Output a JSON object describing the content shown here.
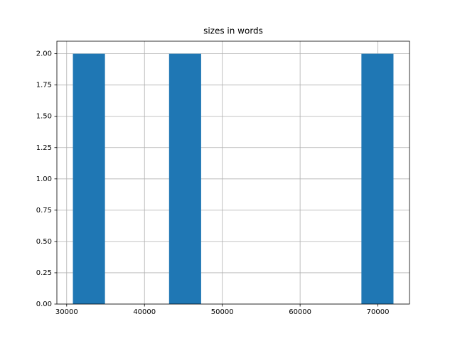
{
  "chart_data": {
    "type": "histogram",
    "title": "sizes in words",
    "bins": [
      30800,
      34920,
      39040,
      43160,
      47280,
      51400,
      55520,
      59640,
      63760,
      67880,
      72000
    ],
    "counts": [
      2,
      0,
      0,
      2,
      0,
      0,
      0,
      0,
      0,
      2
    ],
    "color": "#1f77b4",
    "xlim": [
      28740,
      74060
    ],
    "xticks": [
      30000,
      40000,
      50000,
      60000,
      70000
    ],
    "ylim": [
      0,
      2.1
    ],
    "yticks": [
      {
        "value": 0,
        "label": "0.00"
      },
      {
        "value": 0.25,
        "label": "0.25"
      },
      {
        "value": 0.5,
        "label": "0.50"
      },
      {
        "value": 0.75,
        "label": "0.75"
      },
      {
        "value": 1,
        "label": "1.00"
      },
      {
        "value": 1.25,
        "label": "1.25"
      },
      {
        "value": 1.5,
        "label": "1.50"
      },
      {
        "value": 1.75,
        "label": "1.75"
      },
      {
        "value": 2,
        "label": "2.00"
      }
    ],
    "grid": true
  }
}
